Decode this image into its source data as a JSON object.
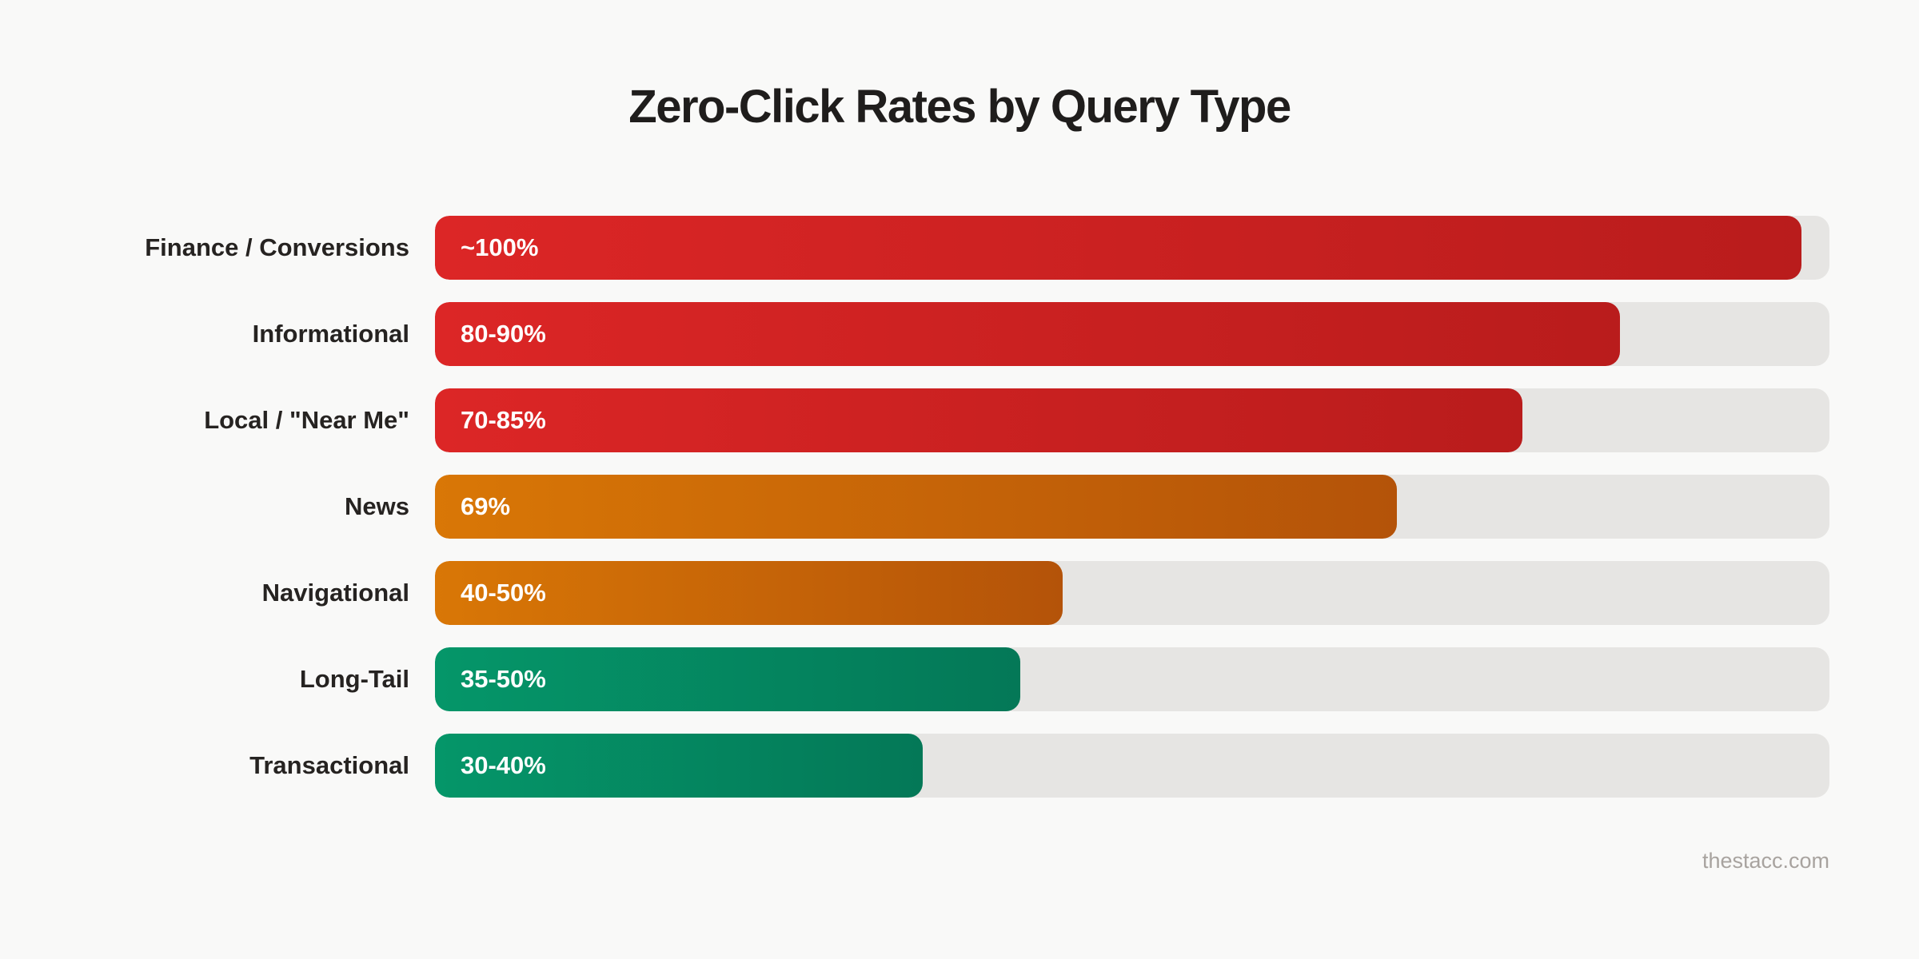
{
  "title": "Zero-Click Rates by Query Type",
  "footer": "thestacc.com",
  "colors": {
    "red": [
      "#dc2626",
      "#b91c1c"
    ],
    "orange": [
      "#d97706",
      "#b45309"
    ],
    "green": [
      "#059669",
      "#047857"
    ],
    "track": "#e6e5e3"
  },
  "rows": [
    {
      "label": "Finance / Conversions",
      "value_label": "~100%",
      "width_pct": 98,
      "color": "red"
    },
    {
      "label": "Informational",
      "value_label": "80-90%",
      "width_pct": 85,
      "color": "red"
    },
    {
      "label": "Local / \"Near Me\"",
      "value_label": "70-85%",
      "width_pct": 78,
      "color": "red"
    },
    {
      "label": "News",
      "value_label": "69%",
      "width_pct": 69,
      "color": "orange"
    },
    {
      "label": "Navigational",
      "value_label": "40-50%",
      "width_pct": 45,
      "color": "orange"
    },
    {
      "label": "Long-Tail",
      "value_label": "35-50%",
      "width_pct": 42,
      "color": "green"
    },
    {
      "label": "Transactional",
      "value_label": "30-40%",
      "width_pct": 35,
      "color": "green"
    }
  ],
  "chart_data": {
    "type": "bar",
    "orientation": "horizontal",
    "title": "Zero-Click Rates by Query Type",
    "categories": [
      "Finance / Conversions",
      "Informational",
      "Local / \"Near Me\"",
      "News",
      "Navigational",
      "Long-Tail",
      "Transactional"
    ],
    "value_labels": [
      "~100%",
      "80-90%",
      "70-85%",
      "69%",
      "40-50%",
      "35-50%",
      "30-40%"
    ],
    "values": [
      98,
      85,
      78,
      69,
      45,
      42,
      35
    ],
    "xlim": [
      0,
      100
    ],
    "xlabel": "",
    "ylabel": "",
    "grid": false,
    "legend": "none",
    "source": "thestacc.com"
  }
}
